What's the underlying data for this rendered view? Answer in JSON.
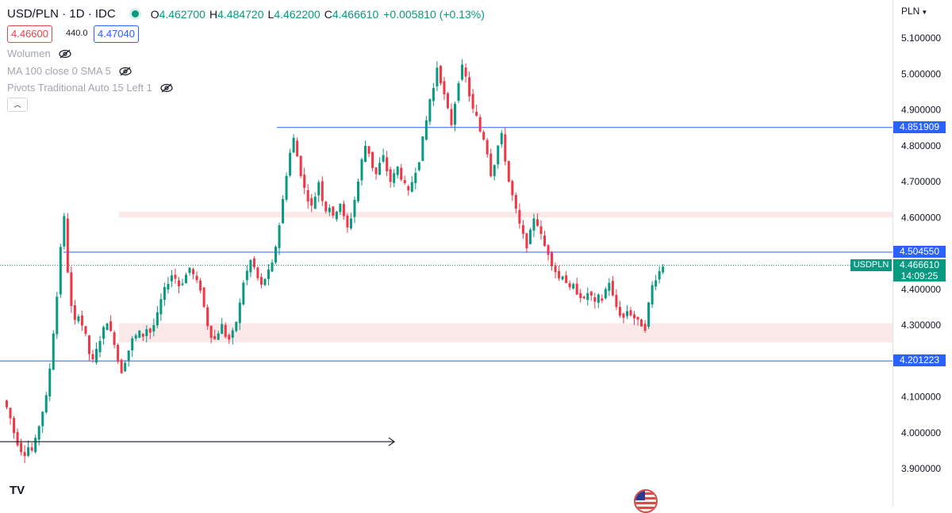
{
  "header": {
    "symbol": "USD/PLN · 1D · IDC",
    "open_label": "O",
    "open": "4.462700",
    "high_label": "H",
    "high": "4.484720",
    "low_label": "L",
    "low": "4.462200",
    "close_label": "C",
    "close": "4.466610",
    "change": "+0.005810 (+0.13%)",
    "sell_price": "4.46600",
    "spread": "440.0",
    "buy_price": "4.47040",
    "currency": "PLN"
  },
  "indicators": [
    {
      "label": "Wolumen"
    },
    {
      "label": "MA 100 close 0 SMA 5"
    },
    {
      "label": "Pivots Traditional Auto 15 Left 1"
    }
  ],
  "price_tags": {
    "level_top": "4.851909",
    "level_mid": "4.504550",
    "level_low": "4.201223",
    "symbol": "USDPLN",
    "last_price": "4.466610",
    "countdown": "14:09:25"
  },
  "logo_text": "TV",
  "colors": {
    "up": "#089981",
    "down": "#f23645",
    "level": "#2962ff",
    "zone": "#f9d8d8"
  },
  "chart_data": {
    "type": "candlestick",
    "ylim": [
      3.87,
      5.13
    ],
    "yticks": [
      "5.100000",
      "5.000000",
      "4.900000",
      "4.800000",
      "4.700000",
      "4.600000",
      "4.500000",
      "4.400000",
      "4.300000",
      "4.100000",
      "4.000000",
      "3.900000"
    ],
    "yticks_values": [
      5.1,
      5.0,
      4.9,
      4.8,
      4.7,
      4.6,
      4.5,
      4.4,
      4.3,
      4.1,
      4.0,
      3.9
    ],
    "horizontal_levels": [
      4.851909,
      4.50455,
      4.201223
    ],
    "zones": [
      {
        "from": 4.6,
        "to": 4.616,
        "x_start": 0.125,
        "x_end": 1.0
      },
      {
        "from": 4.252,
        "to": 4.305,
        "x_start": 0.125,
        "x_end": 1.0
      }
    ],
    "arrow_level": 3.975,
    "last_price": 4.46661,
    "path": [
      4.09,
      4.07,
      4.04,
      4.0,
      3.97,
      3.95,
      3.94,
      3.96,
      3.95,
      3.98,
      4.02,
      4.06,
      4.1,
      4.18,
      4.28,
      4.38,
      4.52,
      4.6,
      4.45,
      4.35,
      4.31,
      4.33,
      4.3,
      4.27,
      4.22,
      4.2,
      4.23,
      4.26,
      4.29,
      4.31,
      4.28,
      4.25,
      4.2,
      4.17,
      4.2,
      4.23,
      4.26,
      4.27,
      4.28,
      4.27,
      4.29,
      4.28,
      4.3,
      4.33,
      4.37,
      4.4,
      4.42,
      4.44,
      4.43,
      4.41,
      4.42,
      4.44,
      4.46,
      4.44,
      4.42,
      4.4,
      4.35,
      4.3,
      4.27,
      4.26,
      4.28,
      4.3,
      4.27,
      4.26,
      4.28,
      4.31,
      4.36,
      4.42,
      4.45,
      4.48,
      4.46,
      4.43,
      4.41,
      4.43,
      4.45,
      4.47,
      4.52,
      4.58,
      4.65,
      4.72,
      4.78,
      4.82,
      4.77,
      4.72,
      4.68,
      4.65,
      4.63,
      4.66,
      4.7,
      4.65,
      4.62,
      4.63,
      4.6,
      4.62,
      4.64,
      4.6,
      4.57,
      4.6,
      4.65,
      4.7,
      4.76,
      4.8,
      4.78,
      4.74,
      4.72,
      4.75,
      4.77,
      4.73,
      4.7,
      4.72,
      4.74,
      4.71,
      4.69,
      4.67,
      4.7,
      4.73,
      4.76,
      4.82,
      4.87,
      4.93,
      4.96,
      5.02,
      4.98,
      4.94,
      4.9,
      4.86,
      4.92,
      4.98,
      5.02,
      4.99,
      4.94,
      4.9,
      4.88,
      4.84,
      4.82,
      4.78,
      4.72,
      4.75,
      4.8,
      4.83,
      4.76,
      4.7,
      4.66,
      4.62,
      4.58,
      4.55,
      4.52,
      4.56,
      4.6,
      4.58,
      4.55,
      4.52,
      4.5,
      4.47,
      4.45,
      4.43,
      4.44,
      4.42,
      4.4,
      4.41,
      4.39,
      4.38,
      4.37,
      4.39,
      4.38,
      4.36,
      4.38,
      4.37,
      4.4,
      4.42,
      4.38,
      4.35,
      4.33,
      4.32,
      4.34,
      4.33,
      4.32,
      4.31,
      4.3,
      4.29,
      4.36,
      4.41,
      4.43,
      4.45,
      4.466
    ]
  }
}
